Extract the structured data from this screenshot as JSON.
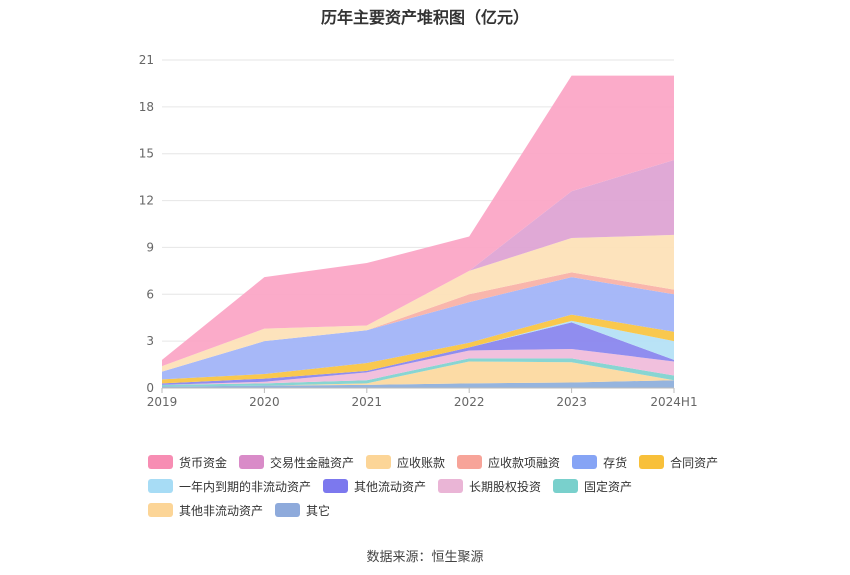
{
  "chart_data": {
    "type": "area",
    "stacked": true,
    "title": "历年主要资产堆积图（亿元）",
    "categories": [
      "2019",
      "2020",
      "2021",
      "2022",
      "2023",
      "2024H1"
    ],
    "ylim": [
      0,
      21
    ],
    "yticks": [
      0,
      3,
      6,
      9,
      12,
      15,
      18,
      21
    ],
    "grid": true,
    "legend_position": "bottom",
    "series": [
      {
        "name": "其它",
        "color": "#8fb0dc",
        "values": [
          0.1,
          0.15,
          0.2,
          0.3,
          0.35,
          0.5
        ]
      },
      {
        "name": "其他非流动资产",
        "color": "#fcd9a0",
        "values": [
          0.0,
          0.0,
          0.1,
          1.4,
          1.3,
          0.0
        ]
      },
      {
        "name": "固定资产",
        "color": "#82d3d0",
        "values": [
          0.1,
          0.15,
          0.2,
          0.2,
          0.25,
          0.3
        ]
      },
      {
        "name": "长期股权投资",
        "color": "#f0bddb",
        "values": [
          0.0,
          0.1,
          0.5,
          0.5,
          0.6,
          0.9
        ]
      },
      {
        "name": "其他流动资产",
        "color": "#8a87ee",
        "values": [
          0.1,
          0.2,
          0.1,
          0.2,
          1.7,
          0.1
        ]
      },
      {
        "name": "一年内到期的非流动资产",
        "color": "#b5e2f6",
        "values": [
          0.0,
          0.0,
          0.0,
          0.0,
          0.1,
          1.2
        ]
      },
      {
        "name": "合同资产",
        "color": "#f9c545",
        "values": [
          0.25,
          0.3,
          0.5,
          0.3,
          0.4,
          0.6
        ]
      },
      {
        "name": "存货",
        "color": "#a2b4f8",
        "values": [
          0.5,
          2.1,
          2.1,
          2.6,
          2.4,
          2.4
        ]
      },
      {
        "name": "应收款项融资",
        "color": "#f9b2a8",
        "values": [
          0.0,
          0.0,
          0.0,
          0.5,
          0.3,
          0.3
        ]
      },
      {
        "name": "应收账款",
        "color": "#fde2b8",
        "values": [
          0.35,
          0.8,
          0.3,
          1.5,
          2.2,
          3.5
        ]
      },
      {
        "name": "交易性金融资产",
        "color": "#dea4d4",
        "values": [
          0.0,
          0.0,
          0.0,
          0.0,
          3.0,
          4.8
        ]
      },
      {
        "name": "货币资金",
        "color": "#fba6c6",
        "values": [
          0.4,
          3.3,
          4.0,
          2.2,
          7.4,
          5.4
        ]
      }
    ]
  },
  "legend_rows": [
    [
      {
        "name": "货币资金",
        "color": "#f78db3"
      },
      {
        "name": "交易性金融资产",
        "color": "#d98bc8"
      },
      {
        "name": "应收账款",
        "color": "#fcd597"
      },
      {
        "name": "应收款项融资",
        "color": "#f7a499"
      },
      {
        "name": "存货",
        "color": "#86a4f5"
      },
      {
        "name": "合同资产",
        "color": "#f8c03a"
      }
    ],
    [
      {
        "name": "一年内到期的非流动资产",
        "color": "#a7dcf5"
      },
      {
        "name": "其他流动资产",
        "color": "#7c78ee"
      },
      {
        "name": "长期股权投资",
        "color": "#eab5d6"
      },
      {
        "name": "固定资产",
        "color": "#79d0cc"
      }
    ],
    [
      {
        "name": "其他非流动资产",
        "color": "#fcd597"
      },
      {
        "name": "其它",
        "color": "#8eaadb"
      }
    ]
  ],
  "source": "数据来源：恒生聚源"
}
